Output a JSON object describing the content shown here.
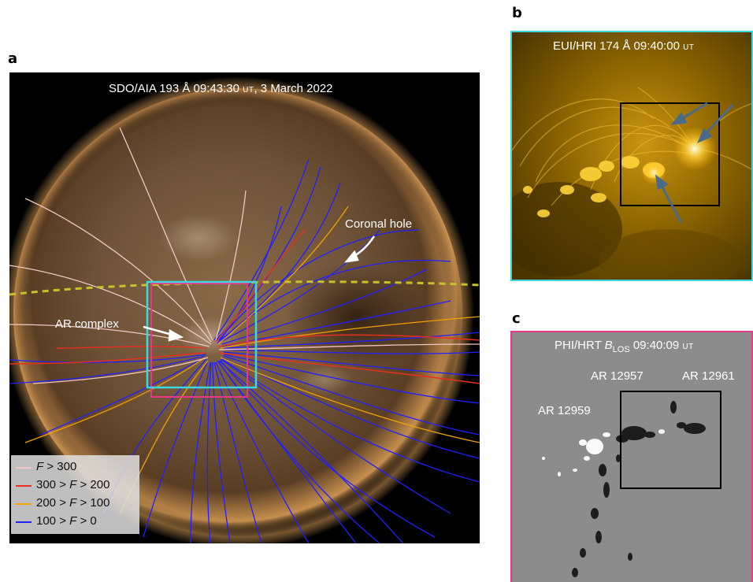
{
  "panels": {
    "a": {
      "label": "a",
      "title_pre": "SDO/AIA 193 Å 09:43:30 ",
      "title_ut": "UT",
      "title_post": ", 3 March 2022",
      "annotations": {
        "coronal_hole": "Coronal hole",
        "ar_complex": "AR complex"
      },
      "legend": [
        {
          "pre": "",
          "var1": "F",
          "mid": " > 300",
          "var2": "",
          "post": "",
          "color": "#f2c6c2"
        },
        {
          "pre": "300 > ",
          "var1": "F",
          "mid": " > 200",
          "var2": "",
          "post": "",
          "color": "#e8301f"
        },
        {
          "pre": "200 > ",
          "var1": "F",
          "mid": " > 100",
          "var2": "",
          "post": "",
          "color": "#f2a000"
        },
        {
          "pre": "100 > ",
          "var1": "F",
          "mid": " > 0",
          "var2": "",
          "post": "",
          "color": "#2020ff"
        }
      ],
      "box_colors": {
        "cyan": "#3fd6e0",
        "magenta": "#e6398c",
        "dashed": "#c8c22a"
      }
    },
    "b": {
      "label": "b",
      "title_pre": "EUI/HRI 174 Å 09:40:00 ",
      "title_ut": "UT",
      "border_color": "#3fd6e0"
    },
    "c": {
      "label": "c",
      "title_pre": "PHI/HRT ",
      "title_var": "B",
      "title_sub": "LOS",
      "title_mid": " 09:40:09 ",
      "title_ut": "UT",
      "ar_labels": [
        "AR 12957",
        "AR 12961",
        "AR 12959"
      ],
      "border_color": "#e6398c"
    }
  }
}
